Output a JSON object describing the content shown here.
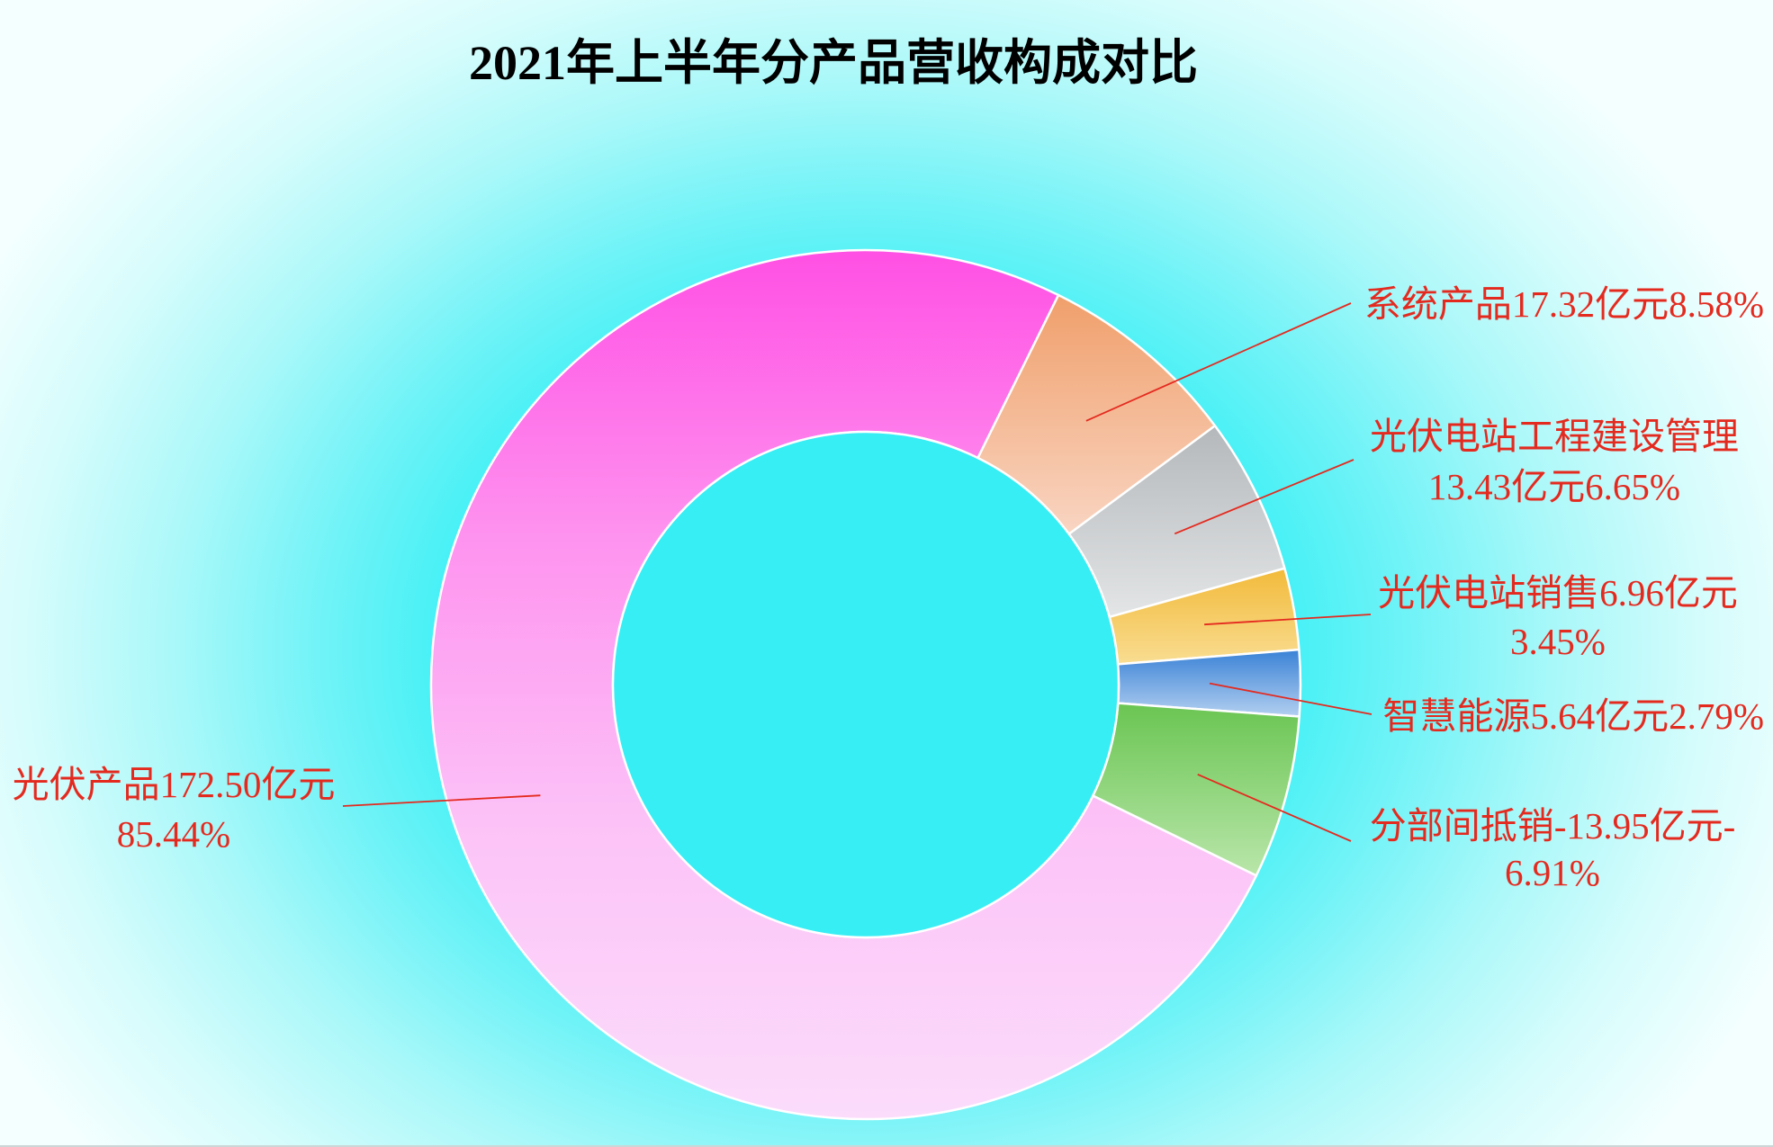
{
  "chart_data": {
    "type": "pie",
    "variant": "donut",
    "title": "2021年上半年分产品营收构成对比",
    "unit": "亿元",
    "slices": [
      {
        "name": "光伏产品",
        "value": 172.5,
        "percent": 85.44,
        "colors": [
          "#ff50e4",
          "#fe93ef",
          "#fcc3f7",
          "#fbdcfb"
        ]
      },
      {
        "name": "系统产品",
        "value": 17.32,
        "percent": 8.58,
        "colors": [
          "#f09f6b",
          "#f9d5c2"
        ]
      },
      {
        "name": "光伏电站工程建设管理",
        "value": 13.43,
        "percent": 6.65,
        "colors": [
          "#b4b8bb",
          "#e3e5e6"
        ]
      },
      {
        "name": "光伏电站销售",
        "value": 6.96,
        "percent": 3.45,
        "colors": [
          "#f2ba3a",
          "#f9dd92"
        ]
      },
      {
        "name": "智慧能源",
        "value": 5.64,
        "percent": 2.79,
        "colors": [
          "#3a82d6",
          "#b2cff0"
        ]
      },
      {
        "name": "分部间抵销",
        "value": -13.95,
        "percent": -6.91,
        "colors": [
          "#6ac552",
          "#b9e6aa"
        ]
      }
    ]
  },
  "colors": {
    "label": "#e42a1f",
    "leader": "#e42a1f",
    "hole": "#36eef4",
    "slice_border": "#ffffff"
  }
}
